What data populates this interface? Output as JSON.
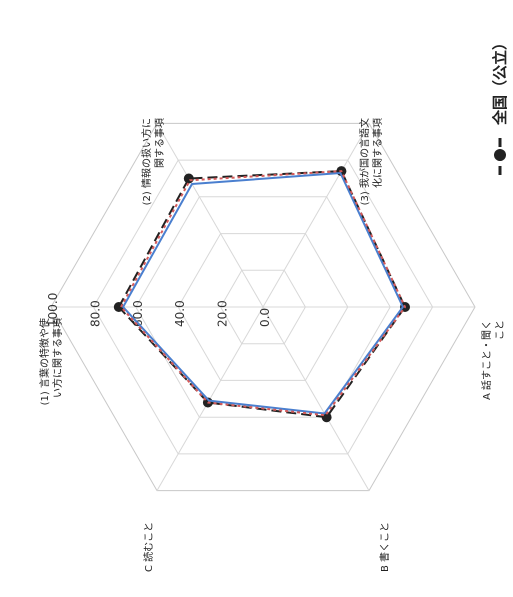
{
  "chart_data": {
    "type": "radar",
    "orientation": "rotated 90° counter-clockwise (scanned page)",
    "axes": [
      "(1) 言葉の特徴や使い方に関する事項",
      "(2) 情報の扱い方に関する事項",
      "(3) 我が国の言語文化に関する事項",
      "A 話すこと・聞くこと",
      "B 書くこと",
      "C 読むこと"
    ],
    "ticks": [
      "0.0",
      "20.0",
      "40.0",
      "60.0",
      "80.0",
      "100.0"
    ],
    "rlim": [
      0,
      100
    ],
    "legend": {
      "label": "全国（公立）",
      "position": "top-right"
    },
    "series": [
      {
        "name": "全国（公立）",
        "color": "#222222",
        "dash": "10 5",
        "marker": "circle",
        "values": [
          68,
          70,
          74,
          67,
          60,
          52
        ]
      },
      {
        "color": "#4a7fcf",
        "dash": "",
        "marker": "none",
        "values": [
          66,
          67,
          73,
          66,
          58,
          51
        ]
      },
      {
        "color": "#d45a5a",
        "dash": "3 3",
        "marker": "none",
        "values": [
          67,
          69,
          74,
          67,
          59,
          52
        ]
      }
    ],
    "grid": true
  }
}
